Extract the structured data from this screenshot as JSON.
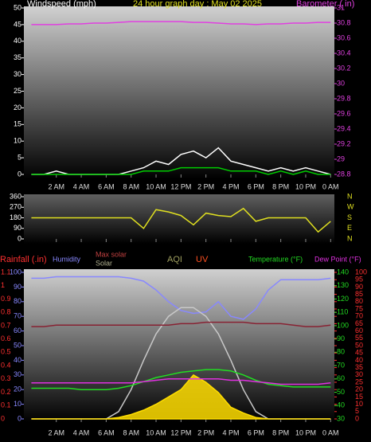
{
  "chart_data": [
    {
      "type": "line",
      "title": "24 hour graph day : May 02 2025",
      "y_label": "Windspeed (mph)",
      "y2_label": "Barometer ( in)",
      "xlim": [
        -0.6,
        24.3
      ],
      "xticks": [
        {
          "value": 2,
          "label": "2 AM"
        },
        {
          "value": 4,
          "label": "4 AM"
        },
        {
          "value": 6,
          "label": "6 AM"
        },
        {
          "value": 8,
          "label": "8 AM"
        },
        {
          "value": 10,
          "label": "10 AM"
        },
        {
          "value": 12,
          "label": "12 PM"
        },
        {
          "value": 14,
          "label": "2 PM"
        },
        {
          "value": 16,
          "label": "4 PM"
        },
        {
          "value": 18,
          "label": "6 PM"
        },
        {
          "value": 20,
          "label": "8 PM"
        },
        {
          "value": 22,
          "label": "10 PM"
        },
        {
          "value": 24,
          "label": "0 AM"
        }
      ],
      "ylim": [
        0,
        50
      ],
      "yticks": [
        0,
        5,
        10,
        15,
        20,
        25,
        30,
        35,
        40,
        45,
        50
      ],
      "y2lim": [
        28.8,
        31
      ],
      "y2ticks": [
        28.8,
        29,
        29.2,
        29.4,
        29.6,
        29.8,
        30,
        30.2,
        30.4,
        30.6,
        30.8,
        31
      ],
      "x": [
        0,
        1,
        2,
        3,
        4,
        5,
        6,
        7,
        8,
        9,
        10,
        11,
        12,
        13,
        14,
        15,
        16,
        17,
        18,
        19,
        20,
        21,
        22,
        23,
        24
      ],
      "series": [
        {
          "color": "#ffffff",
          "axis": "y",
          "values": [
            0,
            0,
            1,
            0,
            0,
            0,
            0,
            0,
            1,
            2,
            4,
            3,
            6,
            7,
            5,
            8,
            4,
            3,
            2,
            1,
            2,
            1,
            2,
            1,
            0
          ]
        },
        {
          "color": "#00cc00",
          "axis": "y",
          "values": [
            0,
            0,
            0,
            0,
            0,
            0,
            0,
            0,
            0,
            1,
            1,
            1,
            2,
            2,
            2,
            2,
            1,
            1,
            1,
            0,
            1,
            0,
            1,
            0,
            0
          ]
        },
        {
          "color": "#e040e0",
          "axis": "y2",
          "values": [
            30.78,
            30.78,
            30.78,
            30.79,
            30.79,
            30.8,
            30.8,
            30.81,
            30.82,
            30.82,
            30.82,
            30.82,
            30.82,
            30.81,
            30.81,
            30.8,
            30.79,
            30.79,
            30.78,
            30.79,
            30.79,
            30.8,
            30.8,
            30.81,
            30.81
          ]
        }
      ]
    },
    {
      "type": "line",
      "xlim": [
        -0.6,
        24.3
      ],
      "xticks": [
        {
          "value": 2,
          "label": "2 AM"
        },
        {
          "value": 4,
          "label": "4 AM"
        },
        {
          "value": 6,
          "label": "6 AM"
        },
        {
          "value": 8,
          "label": "8 AM"
        },
        {
          "value": 10,
          "label": "10 AM"
        },
        {
          "value": 12,
          "label": "12 PM"
        },
        {
          "value": 14,
          "label": "2 PM"
        },
        {
          "value": 16,
          "label": "4 PM"
        },
        {
          "value": 18,
          "label": "6 PM"
        },
        {
          "value": 20,
          "label": "8 PM"
        },
        {
          "value": 22,
          "label": "10 PM"
        },
        {
          "value": 24,
          "label": "0 AM"
        }
      ],
      "ylim": [
        0,
        360
      ],
      "yticks": [
        0,
        90,
        180,
        270,
        360
      ],
      "direction_labels": [
        "N",
        "E",
        "S",
        "W",
        "N"
      ],
      "x": [
        0,
        1,
        2,
        3,
        4,
        5,
        6,
        7,
        8,
        9,
        10,
        11,
        12,
        13,
        14,
        15,
        16,
        17,
        18,
        19,
        20,
        21,
        22,
        23,
        24
      ],
      "series": [
        {
          "color": "#e0e020",
          "axis": "y",
          "values": [
            180,
            180,
            180,
            180,
            180,
            180,
            180,
            180,
            180,
            90,
            250,
            230,
            200,
            120,
            220,
            200,
            190,
            260,
            150,
            180,
            180,
            180,
            180,
            60,
            150
          ]
        }
      ]
    },
    {
      "type": "line",
      "xlim": [
        -0.6,
        24.3
      ],
      "xticks": [
        {
          "value": 2,
          "label": "2 AM"
        },
        {
          "value": 4,
          "label": "4 AM"
        },
        {
          "value": 6,
          "label": "6 AM"
        },
        {
          "value": 8,
          "label": "8 AM"
        },
        {
          "value": 10,
          "label": "10 AM"
        },
        {
          "value": 12,
          "label": "12 PM"
        },
        {
          "value": 14,
          "label": "2 PM"
        },
        {
          "value": 16,
          "label": "4 PM"
        },
        {
          "value": 18,
          "label": "6 PM"
        },
        {
          "value": 20,
          "label": "8 PM"
        },
        {
          "value": 22,
          "label": "10 PM"
        },
        {
          "value": 24,
          "label": "0 AM"
        }
      ],
      "y3_label": "Rainfall (.in)",
      "aqi_label": "AQI",
      "uv_label": "UV",
      "ylim": [
        0,
        100
      ],
      "yticks": [
        0,
        10,
        20,
        30,
        40,
        50,
        60,
        70,
        80,
        90,
        100
      ],
      "y3lim": [
        0,
        1.1
      ],
      "y3ticks": [
        0,
        0.1,
        0.2,
        0.3,
        0.4,
        0.5,
        0.6,
        0.7,
        0.8,
        0.9,
        1,
        1.1
      ],
      "y2lim": [
        30,
        140
      ],
      "y2ticks": [
        30,
        40,
        50,
        60,
        70,
        80,
        90,
        100,
        110,
        120,
        130,
        140
      ],
      "y4lim": [
        0,
        100
      ],
      "y4ticks": [
        0,
        5,
        10,
        15,
        20,
        25,
        30,
        35,
        40,
        45,
        50,
        55,
        60,
        65,
        70,
        75,
        80,
        85,
        90,
        95,
        100
      ],
      "x": [
        0,
        1,
        2,
        3,
        4,
        5,
        6,
        7,
        8,
        9,
        10,
        11,
        12,
        13,
        14,
        15,
        16,
        17,
        18,
        19,
        20,
        21,
        22,
        23,
        24
      ],
      "series": [
        {
          "name": "Humidity",
          "color": "#8888ff",
          "axis": "y",
          "values": [
            96,
            96,
            97,
            97,
            97,
            97,
            97,
            97,
            96,
            94,
            88,
            80,
            74,
            72,
            73,
            80,
            70,
            68,
            75,
            88,
            95,
            95,
            95,
            95,
            96
          ]
        },
        {
          "name": "Max solar",
          "color": "#c8c8c8",
          "axis": "y",
          "values": [
            0,
            0,
            0,
            0,
            0,
            0,
            0,
            5,
            20,
            40,
            58,
            70,
            76,
            76,
            70,
            58,
            40,
            20,
            5,
            0,
            0,
            0,
            0,
            0,
            0
          ]
        },
        {
          "name": "Solar",
          "color": "#ffdd00",
          "axis": "y",
          "area": true,
          "values": [
            0,
            0,
            0,
            0,
            0,
            0,
            0,
            1,
            3,
            6,
            10,
            15,
            20,
            30,
            25,
            18,
            8,
            4,
            1,
            0,
            0,
            0,
            0,
            0,
            0
          ]
        },
        {
          "name": "Temperature (°F)",
          "color": "#22dd22",
          "axis": "y2",
          "values": [
            53,
            53,
            53,
            53,
            52,
            52,
            52,
            53,
            55,
            58,
            61,
            63,
            65,
            66,
            67,
            67,
            66,
            63,
            59,
            56,
            55,
            54,
            54,
            54,
            54
          ]
        },
        {
          "name": "Dew Point (°F)",
          "color": "#e030e0",
          "axis": "y2",
          "values": [
            57,
            57,
            57,
            57,
            57,
            57,
            57,
            57,
            57,
            58,
            59,
            60,
            60,
            60,
            60,
            60,
            59,
            59,
            58,
            57,
            56,
            56,
            56,
            56,
            57
          ]
        },
        {
          "color": "#882233",
          "axis": "y4",
          "values": [
            63,
            63,
            64,
            64,
            64,
            64,
            64,
            64,
            64,
            64,
            64,
            64,
            65,
            65,
            66,
            66,
            66,
            66,
            65,
            65,
            65,
            64,
            63,
            63,
            64
          ]
        }
      ]
    }
  ]
}
